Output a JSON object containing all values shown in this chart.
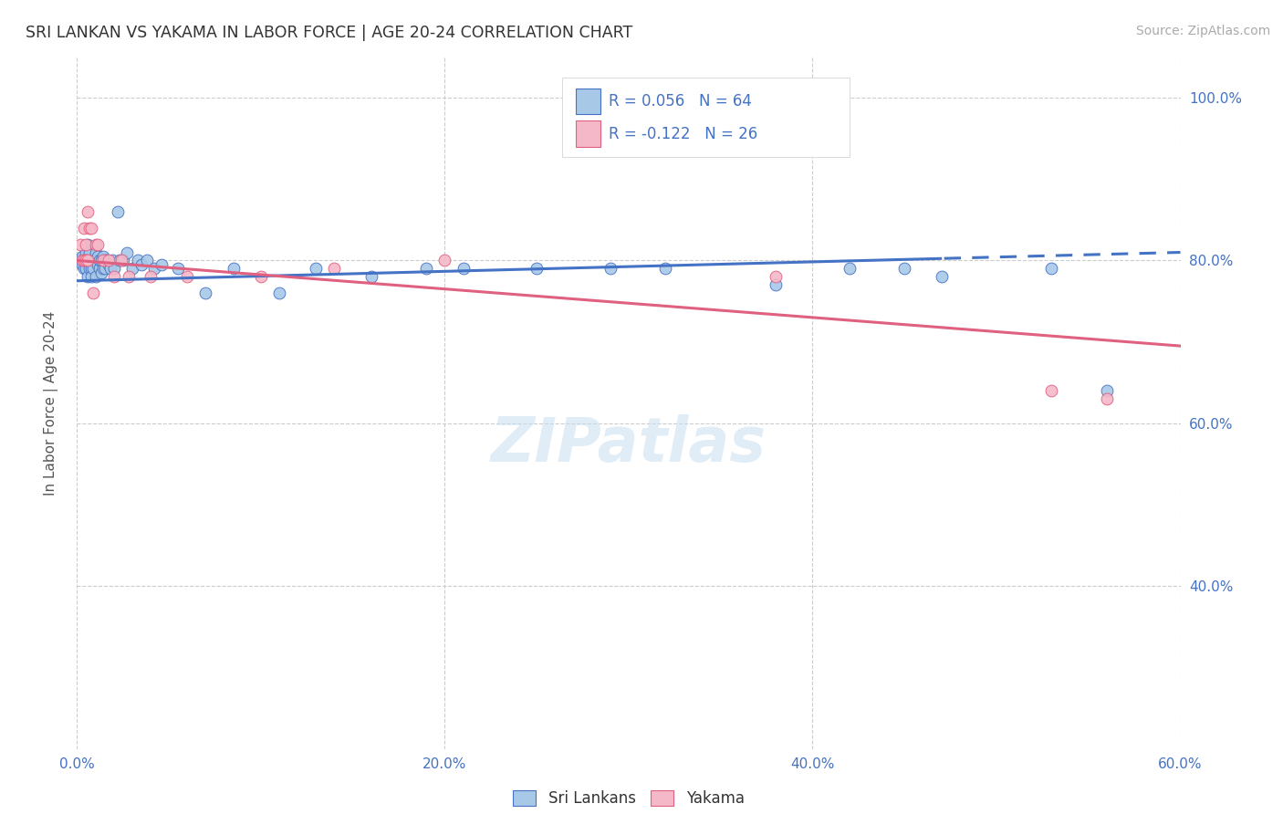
{
  "title": "SRI LANKAN VS YAKAMA IN LABOR FORCE | AGE 20-24 CORRELATION CHART",
  "source_text": "Source: ZipAtlas.com",
  "ylabel": "In Labor Force | Age 20-24",
  "xlim": [
    0.0,
    0.6
  ],
  "ylim": [
    0.2,
    1.05
  ],
  "ytick_values": [
    0.4,
    0.6,
    0.8,
    1.0
  ],
  "ytick_labels": [
    "40.0%",
    "60.0%",
    "80.0%",
    "100.0%"
  ],
  "xtick_values": [
    0.0,
    0.2,
    0.4,
    0.6
  ],
  "xtick_labels": [
    "0.0%",
    "20.0%",
    "40.0%",
    "60.0%"
  ],
  "watermark": "ZIPatlas",
  "sri_lankan_color": "#a8c8e8",
  "yakama_color": "#f5b8c8",
  "sri_lankan_R": 0.056,
  "sri_lankan_N": 64,
  "yakama_R": -0.122,
  "yakama_N": 26,
  "legend_label_1": "Sri Lankans",
  "legend_label_2": "Yakama",
  "sri_lankan_line_color": "#4472c4",
  "yakama_line_color": "#e06080",
  "text_color": "#4472c4",
  "title_color": "#333333",
  "sl_line_dash_start": 0.47,
  "sl_x": [
    0.002,
    0.003,
    0.003,
    0.004,
    0.004,
    0.005,
    0.005,
    0.005,
    0.006,
    0.006,
    0.006,
    0.007,
    0.007,
    0.007,
    0.008,
    0.008,
    0.008,
    0.009,
    0.009,
    0.01,
    0.01,
    0.01,
    0.011,
    0.011,
    0.012,
    0.012,
    0.013,
    0.013,
    0.014,
    0.014,
    0.015,
    0.015,
    0.016,
    0.017,
    0.018,
    0.019,
    0.02,
    0.022,
    0.023,
    0.025,
    0.027,
    0.03,
    0.033,
    0.035,
    0.038,
    0.042,
    0.046,
    0.055,
    0.07,
    0.085,
    0.11,
    0.13,
    0.16,
    0.19,
    0.21,
    0.25,
    0.29,
    0.32,
    0.38,
    0.42,
    0.45,
    0.47,
    0.53,
    0.56
  ],
  "sl_y": [
    0.8,
    0.805,
    0.795,
    0.8,
    0.79,
    0.81,
    0.79,
    0.8,
    0.82,
    0.8,
    0.78,
    0.8,
    0.79,
    0.81,
    0.79,
    0.8,
    0.78,
    0.8,
    0.79,
    0.81,
    0.8,
    0.78,
    0.795,
    0.805,
    0.79,
    0.8,
    0.785,
    0.8,
    0.79,
    0.805,
    0.79,
    0.8,
    0.8,
    0.795,
    0.79,
    0.8,
    0.79,
    0.86,
    0.8,
    0.8,
    0.81,
    0.79,
    0.8,
    0.795,
    0.8,
    0.79,
    0.795,
    0.79,
    0.76,
    0.79,
    0.76,
    0.79,
    0.78,
    0.79,
    0.79,
    0.79,
    0.79,
    0.79,
    0.77,
    0.79,
    0.79,
    0.78,
    0.79,
    0.64
  ],
  "yk_x": [
    0.002,
    0.003,
    0.004,
    0.004,
    0.005,
    0.005,
    0.006,
    0.006,
    0.007,
    0.008,
    0.009,
    0.01,
    0.011,
    0.014,
    0.017,
    0.02,
    0.024,
    0.028,
    0.04,
    0.06,
    0.1,
    0.14,
    0.2,
    0.38,
    0.53,
    0.56
  ],
  "yk_y": [
    0.82,
    0.8,
    0.84,
    0.8,
    0.82,
    0.8,
    0.86,
    0.8,
    0.84,
    0.84,
    0.76,
    0.82,
    0.82,
    0.8,
    0.8,
    0.78,
    0.8,
    0.78,
    0.78,
    0.78,
    0.78,
    0.79,
    0.8,
    0.78,
    0.64,
    0.63
  ]
}
